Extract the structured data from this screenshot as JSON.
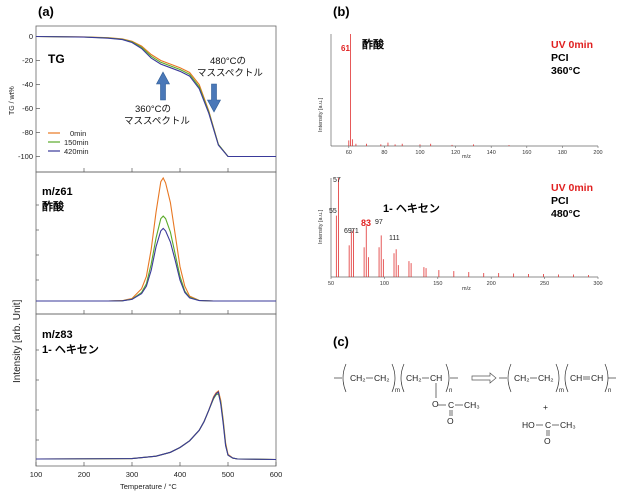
{
  "panel_labels": {
    "a": "(a)",
    "b": "(b)",
    "c": "(c)"
  },
  "chart_data": [
    {
      "type": "line",
      "panel": "a-TG",
      "title": "TG",
      "ylabel": "TG / wt%",
      "ylim": [
        -110,
        10
      ],
      "yticks": [
        "0",
        "-20",
        "-40",
        "-60",
        "-80",
        "-100"
      ],
      "xlim": [
        100,
        600
      ],
      "legend": [
        "0min",
        "150min",
        "420min"
      ],
      "annotations": [
        "360°Cの",
        "マススペクトル",
        "480°Cの",
        "マススペクトル"
      ],
      "x": [
        100,
        200,
        250,
        280,
        300,
        320,
        340,
        360,
        380,
        400,
        420,
        440,
        460,
        480,
        500,
        520,
        600
      ],
      "series": [
        {
          "name": "0min",
          "color": "#e87722",
          "values": [
            0,
            -0.3,
            -1,
            -2,
            -4,
            -8,
            -15,
            -20,
            -23,
            -26,
            -30,
            -40,
            -62,
            -90,
            -100,
            -100,
            -100
          ]
        },
        {
          "name": "150min",
          "color": "#5aaa2a",
          "values": [
            0,
            -0.4,
            -1.2,
            -2.3,
            -4.5,
            -9,
            -16.5,
            -21.5,
            -24.5,
            -27.5,
            -31.5,
            -42,
            -63,
            -90,
            -100,
            -100,
            -100
          ]
        },
        {
          "name": "420min",
          "color": "#3a3a9a",
          "values": [
            0,
            -0.5,
            -1.4,
            -2.6,
            -5,
            -10,
            -18,
            -23,
            -26,
            -29,
            -33,
            -43.5,
            -64,
            -90.5,
            -100,
            -100,
            -100
          ]
        }
      ]
    },
    {
      "type": "line",
      "panel": "a-m61",
      "title": "m/z61",
      "subtitle": "酢酸",
      "x": [
        100,
        250,
        280,
        300,
        320,
        330,
        340,
        350,
        360,
        365,
        370,
        380,
        390,
        400,
        410,
        420,
        440,
        470,
        600
      ],
      "series": [
        {
          "name": "0min",
          "color": "#e87722",
          "values": [
            0,
            0,
            0.3,
            2,
            10,
            20,
            42,
            72,
            97,
            100,
            96,
            80,
            54,
            28,
            12,
            4,
            0.5,
            0,
            0
          ]
        },
        {
          "name": "150min",
          "color": "#5aaa2a",
          "values": [
            0,
            0,
            0.2,
            1.5,
            7,
            14,
            30,
            51,
            67,
            69,
            67,
            56,
            38,
            20,
            8,
            3,
            0.4,
            0,
            0
          ]
        },
        {
          "name": "420min",
          "color": "#3a3a9a",
          "values": [
            0,
            0,
            0.2,
            1.3,
            6,
            12,
            25,
            44,
            57,
            59,
            57,
            48,
            33,
            17,
            7,
            2.5,
            0.3,
            0,
            0
          ]
        }
      ]
    },
    {
      "type": "line",
      "panel": "a-m83",
      "title": "m/z83",
      "subtitle": "1- ヘキセン",
      "ylabel": "Intensity [arb. Unit]",
      "xlabel": "Temperature / °C",
      "xlim": [
        100,
        600
      ],
      "xticks": [
        100,
        200,
        300,
        400,
        500,
        600
      ],
      "x": [
        100,
        300,
        350,
        380,
        400,
        420,
        440,
        450,
        460,
        470,
        475,
        480,
        485,
        490,
        495,
        500,
        510,
        520,
        600
      ],
      "series": [
        {
          "name": "0min",
          "color": "#e87722",
          "values": [
            1,
            1.5,
            4,
            8,
            13,
            20,
            31,
            40,
            52,
            66,
            70,
            72,
            62,
            42,
            18,
            6,
            2,
            1,
            0.5
          ]
        },
        {
          "name": "150min",
          "color": "#5aaa2a",
          "values": [
            1,
            1.5,
            4,
            8,
            13,
            20,
            31,
            40,
            52,
            64,
            68,
            69,
            60,
            40,
            16,
            5,
            2,
            1,
            0.5
          ]
        },
        {
          "name": "420min",
          "color": "#3a3a9a",
          "values": [
            1,
            1.5,
            4,
            8,
            13,
            20,
            31,
            40,
            52,
            65,
            69,
            71,
            58,
            38,
            15,
            5,
            2,
            1,
            0.5
          ]
        }
      ]
    },
    {
      "type": "bar",
      "panel": "b-top",
      "title": "酢酸",
      "label_lines": [
        "UV 0min",
        "PCI",
        "360°C"
      ],
      "peak_label": "61",
      "ylabel": "Intensity [a.u.]",
      "xlabel": "m/z",
      "xlim": [
        50,
        200
      ],
      "xticks": [
        60,
        80,
        100,
        120,
        140,
        160,
        180,
        200
      ],
      "x": [
        60,
        61,
        62,
        64,
        70,
        78,
        82,
        86,
        90,
        100,
        106,
        118,
        130,
        150
      ],
      "values": [
        5,
        100,
        6,
        2,
        2,
        1.5,
        3,
        1.5,
        2,
        1.5,
        2,
        1,
        1.5,
        0.8
      ]
    },
    {
      "type": "bar",
      "panel": "b-bottom",
      "title": "1- ヘキセン",
      "label_lines": [
        "UV 0min",
        "PCI",
        "480°C"
      ],
      "peak_labels": [
        "57",
        "55",
        "69",
        "71",
        "83",
        "97",
        "111"
      ],
      "ylabel": "Intensity [a.u.]",
      "xlabel": "m/z",
      "xlim": [
        50,
        300
      ],
      "xticks": [
        50,
        100,
        150,
        200,
        250,
        300
      ],
      "x": [
        55,
        57,
        67,
        69,
        71,
        81,
        83,
        85,
        95,
        97,
        99,
        109,
        111,
        113,
        123,
        125,
        137,
        139,
        151,
        165,
        179,
        193,
        207,
        221,
        235,
        249,
        263,
        277,
        291
      ],
      "values": [
        62,
        100,
        32,
        46,
        48,
        30,
        52,
        20,
        30,
        42,
        18,
        24,
        28,
        12,
        16,
        14,
        10,
        9,
        7,
        6,
        5,
        4,
        4,
        3.5,
        3,
        3,
        2.5,
        2.5,
        2
      ]
    }
  ],
  "chemistry": {
    "left": [
      "CH₂",
      "CH₂",
      "CH₂",
      "CH",
      "m",
      "n",
      "O",
      "C",
      "CH₃",
      "O"
    ],
    "right": [
      "CH₂",
      "CH₂",
      "CH",
      "CH",
      "m",
      "n",
      "+",
      "HO",
      "C",
      "CH₃",
      "O"
    ]
  }
}
